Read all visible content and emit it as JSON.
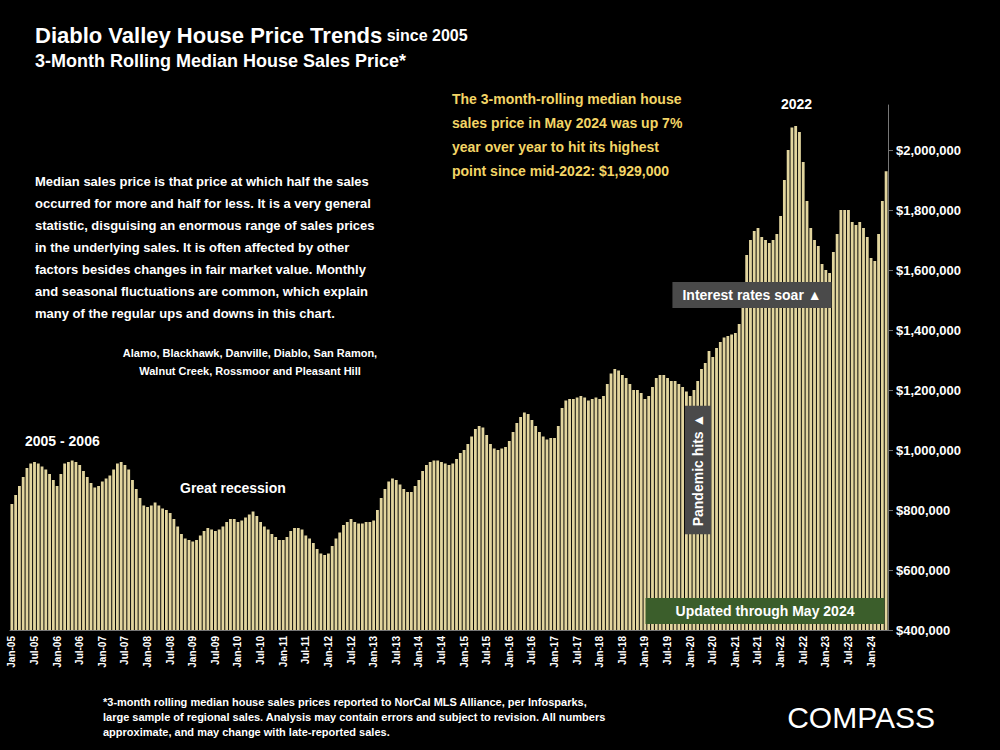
{
  "chart_data": {
    "type": "bar",
    "title": "Diablo Valley House Price Trends since 2005",
    "subtitle": "3-Month Rolling Median House Sales Price*",
    "annotations": [
      "Median sales price is that price at which half the sales\noccurred for more and half for less. It is a very general\nstatistic, disguising an enormous range of sales prices\nin the underlying sales. It is often affected by other\nfactors besides changes in fair market value. Monthly\nand seasonal fluctuations are common, which explain\nmany of the regular ups and downs in this chart.",
      "Alamo, Blackhawk, Danville, Diablo, San Ramon,\nWalnut Creek, Rossmoor and Pleasant Hill",
      "2005 - 2006",
      "Great recession",
      "2022",
      "The 3-month-rolling median house\nsales price in May 2024 was up 7%\nyear over year to hit its highest\npoint since mid-2022: $1,929,000",
      "Interest rates soar ▲",
      "Pandemic hits ▲",
      "Updated through May 2024",
      "*3-month rolling median house sales prices reported to NorCal MLS Alliance, per Infosparks,\nlarge sample of regional sales. Analysis may contain errors and subject to revision. All numbers\napproximate, and may change with late-reported sales.",
      "COMPASS"
    ],
    "categories": [
      "Jan-05",
      null,
      null,
      null,
      null,
      null,
      "Jul-05",
      null,
      null,
      null,
      null,
      null,
      "Jan-06",
      null,
      null,
      null,
      null,
      null,
      "Jul-06",
      null,
      null,
      null,
      null,
      null,
      "Jan-07",
      null,
      null,
      null,
      null,
      null,
      "Jul-07",
      null,
      null,
      null,
      null,
      null,
      "Jan-08",
      null,
      null,
      null,
      null,
      null,
      "Jul-08",
      null,
      null,
      null,
      null,
      null,
      "Jan-09",
      null,
      null,
      null,
      null,
      null,
      "Jul-09",
      null,
      null,
      null,
      null,
      null,
      "Jan-10",
      null,
      null,
      null,
      null,
      null,
      "Jul-10",
      null,
      null,
      null,
      null,
      null,
      "Jan-11",
      null,
      null,
      null,
      null,
      null,
      "Jul-11",
      null,
      null,
      null,
      null,
      null,
      "Jan-12",
      null,
      null,
      null,
      null,
      null,
      "Jul-12",
      null,
      null,
      null,
      null,
      null,
      "Jan-13",
      null,
      null,
      null,
      null,
      null,
      "Jul-13",
      null,
      null,
      null,
      null,
      null,
      "Jan-14",
      null,
      null,
      null,
      null,
      null,
      "Jul-14",
      null,
      null,
      null,
      null,
      null,
      "Jan-15",
      null,
      null,
      null,
      null,
      null,
      "Jul-15",
      null,
      null,
      null,
      null,
      null,
      "Jan-16",
      null,
      null,
      null,
      null,
      null,
      "Jul-16",
      null,
      null,
      null,
      null,
      null,
      "Jan-17",
      null,
      null,
      null,
      null,
      null,
      "Jul-17",
      null,
      null,
      null,
      null,
      null,
      "Jan-18",
      null,
      null,
      null,
      null,
      null,
      "Jul-18",
      null,
      null,
      null,
      null,
      null,
      "Jan-19",
      null,
      null,
      null,
      null,
      null,
      "Jul-19",
      null,
      null,
      null,
      null,
      null,
      "Jan-20",
      null,
      null,
      null,
      null,
      null,
      "Jul-20",
      null,
      null,
      null,
      null,
      null,
      "Jan-21",
      null,
      null,
      null,
      null,
      null,
      "Jul-21",
      null,
      null,
      null,
      null,
      null,
      "Jan-22",
      null,
      null,
      null,
      null,
      null,
      "Jul-22",
      null,
      null,
      null,
      null,
      null,
      "Jan-23",
      null,
      null,
      null,
      null,
      null,
      "Jul-23",
      null,
      null,
      null,
      null,
      null,
      "Jan-24",
      null,
      null,
      null,
      null
    ],
    "values": [
      820000,
      850000,
      880000,
      910000,
      940000,
      955000,
      960000,
      955000,
      945000,
      935000,
      920000,
      900000,
      880000,
      920000,
      955000,
      960000,
      965000,
      960000,
      950000,
      930000,
      910000,
      890000,
      875000,
      880000,
      895000,
      905000,
      915000,
      935000,
      955000,
      960000,
      950000,
      935000,
      900000,
      870000,
      840000,
      815000,
      810000,
      815000,
      825000,
      815000,
      805000,
      800000,
      790000,
      770000,
      745000,
      720000,
      705000,
      700000,
      695000,
      700000,
      715000,
      730000,
      740000,
      735000,
      730000,
      735000,
      745000,
      760000,
      770000,
      770000,
      760000,
      765000,
      775000,
      785000,
      795000,
      780000,
      760000,
      745000,
      735000,
      720000,
      710000,
      700000,
      700000,
      710000,
      730000,
      740000,
      740000,
      735000,
      715000,
      705000,
      690000,
      670000,
      655000,
      650000,
      655000,
      680000,
      705000,
      725000,
      750000,
      760000,
      770000,
      760000,
      755000,
      755000,
      760000,
      760000,
      765000,
      800000,
      840000,
      870000,
      895000,
      905000,
      900000,
      885000,
      870000,
      860000,
      860000,
      880000,
      900000,
      930000,
      950000,
      960000,
      965000,
      965000,
      960000,
      955000,
      950000,
      955000,
      970000,
      990000,
      1000000,
      1020000,
      1045000,
      1070000,
      1080000,
      1075000,
      1050000,
      1020000,
      1005000,
      1000000,
      1005000,
      1010000,
      1030000,
      1060000,
      1090000,
      1110000,
      1125000,
      1120000,
      1100000,
      1080000,
      1060000,
      1045000,
      1035000,
      1040000,
      1040000,
      1080000,
      1140000,
      1165000,
      1170000,
      1170000,
      1175000,
      1180000,
      1175000,
      1165000,
      1170000,
      1175000,
      1170000,
      1180000,
      1220000,
      1255000,
      1270000,
      1265000,
      1250000,
      1240000,
      1220000,
      1200000,
      1200000,
      1190000,
      1170000,
      1180000,
      1210000,
      1240000,
      1250000,
      1250000,
      1240000,
      1230000,
      1230000,
      1220000,
      1210000,
      1195000,
      1180000,
      1200000,
      1230000,
      1270000,
      1290000,
      1330000,
      1310000,
      1340000,
      1360000,
      1375000,
      1380000,
      1385000,
      1390000,
      1420000,
      1540000,
      1650000,
      1700000,
      1730000,
      1740000,
      1710000,
      1700000,
      1690000,
      1700000,
      1720000,
      1780000,
      1900000,
      2000000,
      2075000,
      2080000,
      2060000,
      1960000,
      1830000,
      1740000,
      1700000,
      1680000,
      1620000,
      1600000,
      1590000,
      1660000,
      1720000,
      1800000,
      1800000,
      1800000,
      1760000,
      1750000,
      1760000,
      1740000,
      1710000,
      1640000,
      1630000,
      1720000,
      1830000,
      1929000
    ],
    "color": "#e2d59e",
    "ylim": [
      400000,
      2150000
    ],
    "yticks": [
      {
        "value": 400000,
        "label": "$400,000"
      },
      {
        "value": 600000,
        "label": "$600,000"
      },
      {
        "value": 800000,
        "label": "$800,000"
      },
      {
        "value": 1000000,
        "label": "$1,000,000"
      },
      {
        "value": 1200000,
        "label": "$1,200,000"
      },
      {
        "value": 1400000,
        "label": "$1,400,000"
      },
      {
        "value": 1600000,
        "label": "$1,600,000"
      },
      {
        "value": 1800000,
        "label": "$1,800,000"
      },
      {
        "value": 2000000,
        "label": "$2,000,000"
      }
    ],
    "grid": false
  }
}
